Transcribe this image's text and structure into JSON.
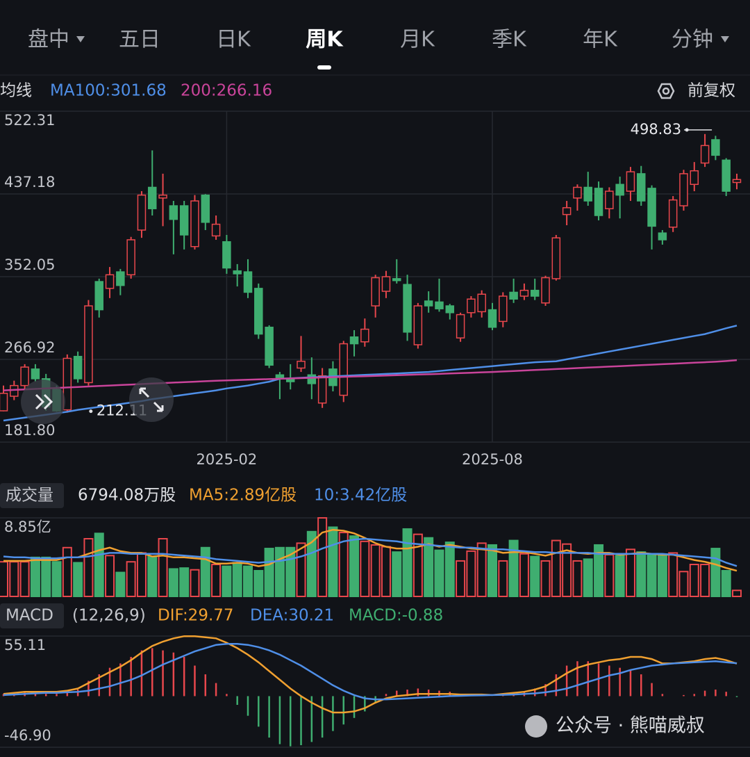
{
  "tabs": [
    "盘中",
    "五日",
    "日K",
    "周K",
    "月K",
    "季K",
    "年K",
    "分钟"
  ],
  "watermark": "公众号 · 熊喵威叔",
  "chart_data": [
    {
      "type": "candlestick",
      "legend_title": "均线",
      "adjustment": "前复权",
      "categories": [
        null,
        null,
        null,
        null,
        null,
        null,
        null,
        null,
        null,
        null,
        null,
        null,
        null,
        null,
        null,
        null,
        null,
        null,
        null,
        null,
        null,
        "2025-02",
        null,
        null,
        null,
        null,
        null,
        null,
        null,
        null,
        null,
        null,
        null,
        null,
        null,
        null,
        null,
        null,
        null,
        null,
        null,
        null,
        null,
        null,
        null,
        null,
        "2025-08",
        null,
        null,
        null,
        null,
        null,
        null,
        null,
        null,
        null,
        null,
        null,
        null,
        null,
        null,
        null,
        null,
        null,
        null,
        null,
        null,
        null,
        null,
        null
      ],
      "open": [
        214,
        229,
        240,
        257,
        247,
        236,
        215,
        270,
        243,
        347,
        340,
        357,
        354,
        400,
        444,
        433,
        425,
        425,
        383,
        436,
        394,
        388,
        358,
        357,
        340,
        300,
        251,
        247,
        258,
        251,
        222,
        257,
        230,
        290,
        285,
        322,
        337,
        350,
        344,
        282,
        327,
        326,
        322,
        289,
        315,
        316,
        318,
        306,
        336,
        332,
        338,
        325,
        350,
        416,
        433,
        444,
        443,
        422,
        447,
        440,
        458,
        443,
        397,
        403,
        425,
        447,
        469,
        493,
        472,
        449
      ],
      "high": [
        240,
        245,
        262,
        262,
        252,
        240,
        272,
        275,
        328,
        350,
        362,
        360,
        393,
        440,
        482,
        458,
        430,
        430,
        436,
        437,
        415,
        395,
        365,
        370,
        345,
        302,
        254,
        262,
        291,
        269,
        258,
        265,
        286,
        297,
        309,
        354,
        358,
        370,
        354,
        325,
        337,
        350,
        324,
        315,
        332,
        338,
        325,
        336,
        350,
        345,
        350,
        353,
        395,
        430,
        447,
        460,
        450,
        444,
        455,
        465,
        466,
        446,
        400,
        435,
        462,
        470,
        498.83,
        497,
        474,
        458
      ],
      "low": [
        213.5,
        225,
        236,
        244,
        214,
        213,
        212.11,
        243,
        240,
        310,
        330,
        333,
        350,
        392,
        415,
        404,
        375,
        380,
        380,
        400,
        390,
        355,
        342,
        330,
        288,
        258,
        226,
        236,
        254,
        226,
        217,
        234,
        223,
        270,
        280,
        310,
        330,
        345,
        286,
        278,
        315,
        316,
        308,
        285,
        310,
        310,
        297,
        300,
        325,
        328,
        328,
        322,
        348,
        405,
        420,
        425,
        410,
        412,
        412,
        430,
        425,
        380,
        385,
        398,
        420,
        440,
        465,
        472,
        435,
        442
      ],
      "close": [
        232,
        240,
        259,
        247,
        218,
        214,
        268,
        247,
        322,
        318,
        354,
        343,
        390,
        436,
        422,
        436,
        411,
        395,
        430,
        408,
        406,
        361,
        355,
        336,
        293,
        261,
        247,
        244,
        265,
        242,
        250,
        240,
        283,
        283,
        298,
        351,
        352,
        348,
        295,
        322,
        322,
        319,
        315,
        313,
        329,
        334,
        300,
        332,
        329,
        338,
        332,
        351,
        392,
        423,
        444,
        430,
        415,
        440,
        436,
        460,
        430,
        404,
        390,
        431,
        458,
        461,
        487,
        477,
        440,
        452
      ],
      "up_color": "#e8474c",
      "down_color": "#3fae70",
      "series": [
        {
          "name": "MA100:301.68",
          "color": "#4f8fe8",
          "values": [
            204,
            205.5,
            207,
            208.5,
            210,
            211.5,
            213,
            215,
            216.5,
            218,
            219.5,
            221,
            222.5,
            224,
            226,
            227.5,
            229,
            230.5,
            232,
            233.5,
            235,
            237,
            238.5,
            240,
            242,
            244,
            247,
            247.5,
            248,
            248.5,
            249,
            249.5,
            250,
            250.5,
            251,
            251.5,
            252,
            252.5,
            253,
            253.5,
            254,
            255,
            256,
            257,
            258,
            259,
            260,
            261,
            262,
            263,
            264,
            264.5,
            265,
            267,
            269,
            271,
            273,
            275,
            277,
            279,
            281,
            283,
            285,
            287,
            289,
            291,
            293,
            296,
            299,
            301.68
          ]
        },
        {
          "name": "200:266.16",
          "color": "#c9449a",
          "values": [
            235,
            235.5,
            236,
            236.5,
            237,
            237.5,
            238,
            238.5,
            239,
            239.5,
            240,
            240.5,
            241,
            241.5,
            242,
            242.5,
            243,
            243.5,
            244,
            244.5,
            245,
            245.3,
            245.6,
            246,
            246.3,
            246.6,
            247,
            247.3,
            247.6,
            248,
            248.3,
            248.6,
            249,
            249.3,
            249.6,
            250,
            250.3,
            250.6,
            251,
            251.3,
            251.6,
            252,
            252.4,
            252.8,
            253.2,
            253.6,
            254,
            254.5,
            255,
            255.5,
            256,
            256.5,
            257,
            257.5,
            258,
            258.5,
            259,
            259.5,
            260,
            260.5,
            261,
            261.5,
            262,
            262.5,
            263,
            263.5,
            264,
            264.5,
            265.2,
            266.16
          ]
        }
      ],
      "ylim": [
        181.8,
        522.31
      ],
      "yticks": [
        522.31,
        437.18,
        352.05,
        266.92,
        {
          "value": 181.8,
          "label": "181.80"
        }
      ],
      "high_label": 498.83,
      "low_label": 212.11
    },
    {
      "type": "bar",
      "title": "成交量",
      "subtitle": "6794.08万股",
      "values": [
        3.9,
        3.9,
        3.9,
        4.4,
        4.4,
        3.9,
        5.5,
        3.8,
        6.5,
        7.1,
        4.6,
        2.7,
        3.9,
        4.9,
        4.5,
        6.5,
        3.1,
        3.2,
        3.0,
        5.5,
        3.6,
        3.4,
        3.8,
        3.4,
        2.9,
        5.4,
        5.5,
        5.5,
        6.0,
        7.3,
        8.85,
        7.8,
        7.2,
        6.8,
        6.2,
        5.8,
        5.6,
        5.0,
        7.6,
        7.0,
        6.6,
        5.2,
        6.1,
        4.0,
        5.1,
        6.0,
        5.8,
        4.0,
        6.3,
        4.8,
        4.5,
        4.0,
        6.3,
        5.9,
        4.0,
        4.2,
        5.8,
        4.7,
        4.6,
        5.3,
        5.0,
        4.7,
        4.6,
        4.9,
        2.8,
        3.6,
        3.6,
        5.4,
        2.9,
        0.679408
      ],
      "series": [
        {
          "name": "MA5:2.89亿股",
          "color": "#f0a030",
          "values": [
            4.0,
            4.0,
            4.0,
            4.1,
            4.1,
            4.1,
            4.4,
            4.4,
            4.8,
            5.2,
            5.5,
            5.1,
            4.9,
            4.9,
            4.5,
            4.6,
            4.4,
            4.4,
            4.3,
            4.2,
            3.7,
            3.7,
            3.8,
            3.7,
            3.4,
            3.6,
            4.2,
            4.7,
            5.4,
            6.1,
            7.2,
            7.5,
            7.4,
            7.1,
            6.6,
            6.0,
            5.6,
            5.4,
            5.4,
            5.6,
            5.9,
            5.6,
            5.8,
            5.6,
            5.4,
            5.3,
            5.2,
            4.9,
            5.0,
            5.0,
            4.8,
            4.6,
            4.9,
            5.2,
            4.9,
            4.8,
            4.9,
            4.9,
            4.7,
            4.8,
            4.9,
            4.8,
            4.7,
            4.7,
            4.4,
            4.1,
            3.9,
            3.6,
            3.2,
            2.89
          ]
        },
        {
          "name": "10:3.42亿股",
          "color": "#4f8fe8",
          "values": [
            4.5,
            4.4,
            4.4,
            4.3,
            4.3,
            4.3,
            4.4,
            4.4,
            4.5,
            4.7,
            4.9,
            4.9,
            4.8,
            4.8,
            4.8,
            4.8,
            4.7,
            4.6,
            4.5,
            4.4,
            4.2,
            4.1,
            4.0,
            3.9,
            3.8,
            3.9,
            4.0,
            4.2,
            4.5,
            4.9,
            5.4,
            5.8,
            6.2,
            6.4,
            6.5,
            6.4,
            6.3,
            6.2,
            6.0,
            5.9,
            5.8,
            5.7,
            5.6,
            5.5,
            5.5,
            5.4,
            5.3,
            5.3,
            5.2,
            5.1,
            5.0,
            5.0,
            4.9,
            4.9,
            4.9,
            4.9,
            4.8,
            4.8,
            4.8,
            4.8,
            4.8,
            4.8,
            4.8,
            4.7,
            4.6,
            4.5,
            4.4,
            4.3,
            3.8,
            3.42
          ]
        }
      ],
      "ylim": [
        0,
        8.85
      ],
      "yticks": [
        {
          "value": 8.85,
          "label": "8.85亿"
        }
      ]
    },
    {
      "type": "macd",
      "title": "MACD",
      "subtitle": "(12,26,9)",
      "series": [
        {
          "name": "DIF:29.77",
          "color": "#f0a030",
          "values": [
            2,
            3,
            4,
            4,
            4,
            4,
            5,
            7,
            12,
            17,
            22,
            27,
            33,
            40,
            46,
            50,
            53,
            55,
            55,
            54,
            53,
            49,
            44,
            38,
            31,
            23,
            15,
            7,
            0,
            -6,
            -11,
            -15,
            -15,
            -14,
            -11,
            -6,
            -2,
            0,
            1,
            2,
            2,
            2,
            2,
            1.5,
            1.5,
            1.5,
            1,
            2,
            3,
            4,
            6,
            9,
            15,
            21,
            26,
            29,
            31,
            33,
            34,
            36,
            36,
            34,
            30,
            30,
            31,
            32,
            34,
            35,
            33,
            29.77
          ]
        },
        {
          "name": "DEA:30.21",
          "color": "#4f8fe8",
          "values": [
            1,
            1.5,
            2,
            2.5,
            3,
            3,
            3.5,
            4,
            5,
            7,
            9,
            12,
            15,
            19,
            24,
            29,
            33,
            37,
            41,
            44,
            47,
            48,
            48,
            47,
            45,
            42,
            38,
            33,
            28,
            22,
            16,
            10,
            5,
            1,
            -2,
            -3,
            -3,
            -2.5,
            -2,
            -1.5,
            -1,
            -0.5,
            0,
            0.3,
            0.6,
            0.8,
            1,
            1.2,
            1.5,
            2,
            2.5,
            3.5,
            5,
            7,
            10,
            13,
            16,
            19,
            21,
            24,
            26,
            28,
            29,
            30,
            30.5,
            31,
            31.5,
            32,
            31,
            30.21
          ]
        },
        {
          "name": "MACD:-0.88",
          "color": "#3fae70",
          "values": [
            2,
            3,
            4,
            3,
            2,
            2,
            3,
            6,
            14,
            20,
            26,
            30,
            36,
            42,
            44,
            42,
            40,
            36,
            28,
            20,
            12,
            2,
            -8,
            -18,
            -28,
            -38,
            -44,
            -46,
            -45,
            -42,
            -38,
            -32,
            -26,
            -20,
            -14,
            -6,
            2,
            5,
            6,
            7,
            6,
            5,
            4,
            2,
            2,
            1.4,
            0,
            1.6,
            3,
            4,
            7,
            11,
            20,
            28,
            32,
            32,
            30,
            28,
            26,
            24,
            20,
            12,
            2,
            0,
            1,
            2,
            5,
            6,
            4,
            -0.88
          ]
        }
      ],
      "ylim": [
        -46.9,
        55.11
      ],
      "yticks": [
        55.11,
        {
          "value": -46.9,
          "label": "-46.90"
        }
      ]
    }
  ]
}
